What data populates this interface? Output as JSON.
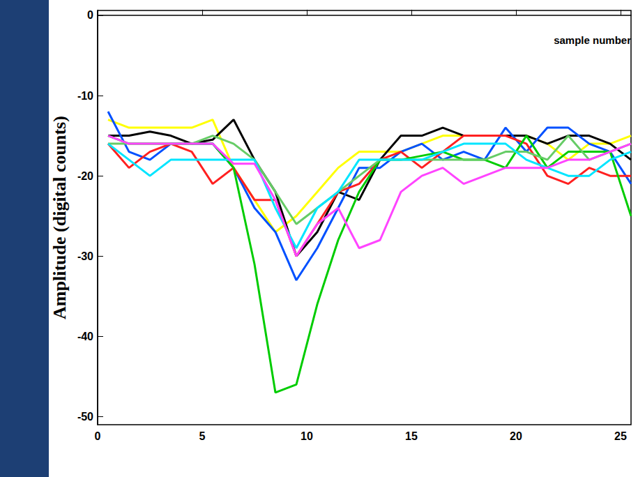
{
  "chart_data": {
    "type": "line",
    "x_label": "sample number",
    "y_label": "Amplitude (digital counts)",
    "x": [
      0.5,
      1.5,
      2.5,
      3.5,
      4.5,
      5.5,
      6.5,
      7.5,
      8.5,
      9.5,
      10.5,
      11.5,
      12.5,
      13.5,
      14.5,
      15.5,
      16.5,
      17.5,
      18.5,
      19.5,
      20.5,
      21.5,
      22.5,
      23.5,
      24.5,
      25.5
    ],
    "xlim": [
      0,
      25.5
    ],
    "xticks": [
      0,
      5,
      10,
      15,
      20,
      25
    ],
    "ylim": [
      -51,
      0.6
    ],
    "yticks": [
      -50,
      -40,
      -30,
      -20,
      -10,
      0
    ],
    "grid": false,
    "series": [
      {
        "color": "#ffff00",
        "values": [
          -13,
          -14,
          -14,
          -14,
          -14,
          -13,
          -19,
          -23,
          -27,
          -25,
          -22,
          -19,
          -17,
          -17,
          -17,
          -16,
          -15,
          -15,
          -15,
          -15,
          -15,
          -16,
          -18,
          -16,
          -16,
          -15
        ]
      },
      {
        "color": "#000000",
        "values": [
          -15,
          -15,
          -14.5,
          -15,
          -16,
          -15.5,
          -13,
          -18,
          -22,
          -30,
          -27,
          -22,
          -23,
          -18,
          -15,
          -15,
          -14,
          -15,
          -15,
          -15,
          -15,
          -16,
          -15,
          -15,
          -16,
          -18
        ]
      },
      {
        "color": "#0050ff",
        "values": [
          -12,
          -17,
          -18,
          -16,
          -16,
          -16,
          -19,
          -24,
          -27,
          -33,
          -29,
          -24,
          -19,
          -19,
          -17,
          -16,
          -18,
          -17,
          -18,
          -14,
          -17,
          -14,
          -14,
          -16,
          -17,
          -21
        ]
      },
      {
        "color": "#ff2020",
        "values": [
          -16,
          -19,
          -17,
          -16,
          -17,
          -21,
          -19,
          -23,
          -23,
          -30,
          -26,
          -22,
          -21,
          -18,
          -17,
          -19,
          -17,
          -15,
          -15,
          -15,
          -16,
          -20,
          -21,
          -19,
          -20,
          -20
        ]
      },
      {
        "color": "#00cc00",
        "values": [
          -15,
          -16,
          -16,
          -16,
          -16,
          -16,
          -19,
          -31,
          -47,
          -46,
          -36,
          -28,
          -22,
          -18,
          -18,
          -17.5,
          -17,
          -18,
          -18,
          -19,
          -15,
          -19,
          -17,
          -17,
          -17,
          -25
        ]
      },
      {
        "color": "#66cc66",
        "values": [
          -16,
          -16,
          -16,
          -16,
          -16,
          -15,
          -16,
          -18,
          -22,
          -26,
          -24,
          -22,
          -20,
          -18,
          -18,
          -18,
          -18,
          -18,
          -18,
          -17,
          -17,
          -18,
          -15,
          -18,
          -17,
          -16
        ]
      },
      {
        "color": "#00e5ff",
        "values": [
          -16,
          -18,
          -20,
          -18,
          -18,
          -18,
          -18,
          -18,
          -24,
          -29,
          -24,
          -22,
          -18,
          -18,
          -18,
          -18,
          -17,
          -16,
          -16,
          -16,
          -18,
          -19,
          -20,
          -20,
          -18,
          -17
        ]
      },
      {
        "color": "#ff44ff",
        "values": [
          -15,
          -16,
          -16,
          -16,
          -16,
          -16,
          -18.5,
          -18.5,
          -23,
          -30,
          -26,
          -24,
          -29,
          -28,
          -22,
          -20,
          -19,
          -21,
          -20,
          -19,
          -19,
          -19,
          -18,
          -18,
          -17,
          -16
        ]
      }
    ]
  }
}
